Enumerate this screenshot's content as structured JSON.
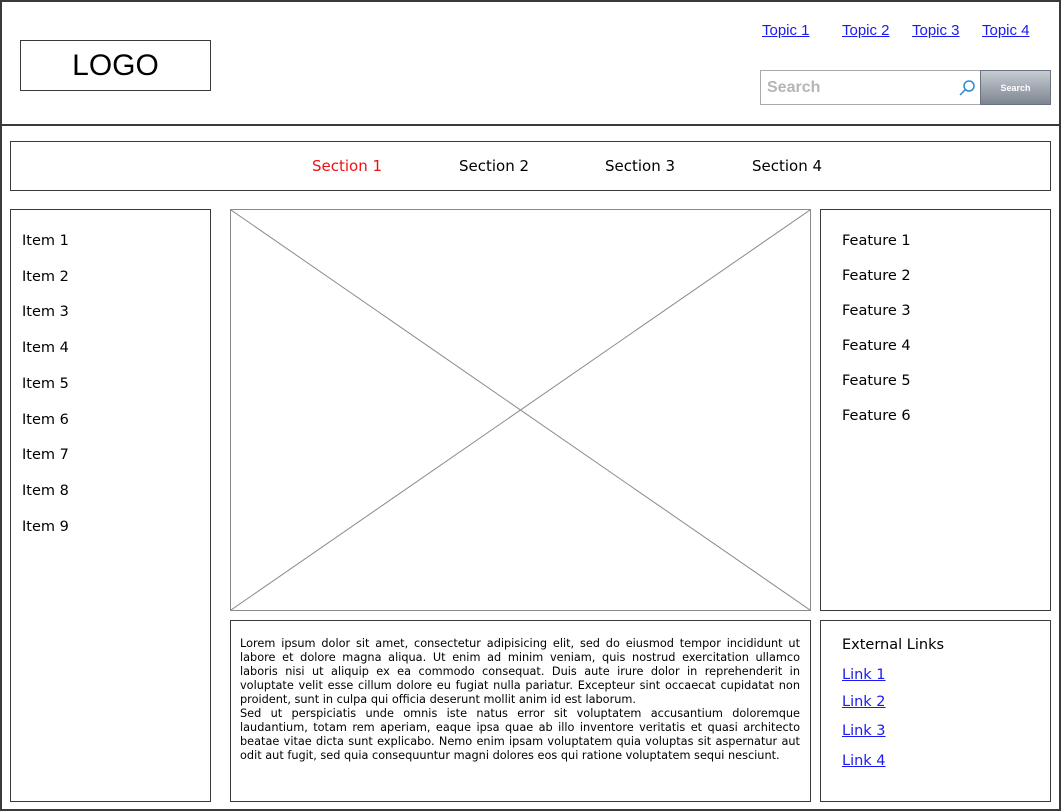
{
  "header": {
    "logo_text": "LOGO",
    "topics": [
      "Topic 1",
      "Topic 2",
      "Topic 3",
      "Topic 4"
    ],
    "search": {
      "placeholder": "Search",
      "button_label": "Search"
    }
  },
  "nav": {
    "sections": [
      "Section 1",
      "Section 2",
      "Section 3",
      "Section 4"
    ],
    "active_index": 0,
    "active_color": "#ee1111"
  },
  "sidebar": {
    "items": [
      "Item 1",
      "Item 2",
      "Item 3",
      "Item 4",
      "Item 5",
      "Item 6",
      "Item 7",
      "Item 8",
      "Item 9"
    ]
  },
  "features": {
    "items": [
      "Feature 1",
      "Feature 2",
      "Feature 3",
      "Feature 4",
      "Feature 5",
      "Feature 6"
    ]
  },
  "content": {
    "paragraphs": [
      "Lorem ipsum dolor sit amet, consectetur adipisicing elit, sed do eiusmod tempor incididunt ut labore et dolore magna aliqua. Ut enim ad minim veniam, quis nostrud exercitation ullamco laboris nisi ut aliquip ex ea commodo consequat. Duis aute irure dolor in reprehenderit in voluptate velit esse cillum dolore eu fugiat nulla pariatur. Excepteur sint occaecat cupidatat non proident, sunt in culpa qui officia deserunt mollit anim id est laborum.",
      "Sed ut perspiciatis unde omnis iste natus error sit voluptatem accusantium doloremque laudantium, totam rem aperiam, eaque ipsa quae ab illo inventore veritatis et quasi architecto beatae vitae dicta sunt explicabo. Nemo enim ipsam voluptatem quia voluptas sit aspernatur aut odit aut fugit, sed quia consequuntur magni dolores eos qui ratione voluptatem sequi nesciunt."
    ]
  },
  "external_links": {
    "title": "External Links",
    "links": [
      "Link 1",
      "Link 2",
      "Link 3",
      "Link 4"
    ]
  },
  "icons": {
    "search": "search-icon",
    "image_placeholder": "image-placeholder-icon"
  },
  "colors": {
    "link": "#1a1aee",
    "border": "#3a3a3a",
    "button_top": "#c7ccd2",
    "button_bottom": "#7d8590"
  }
}
